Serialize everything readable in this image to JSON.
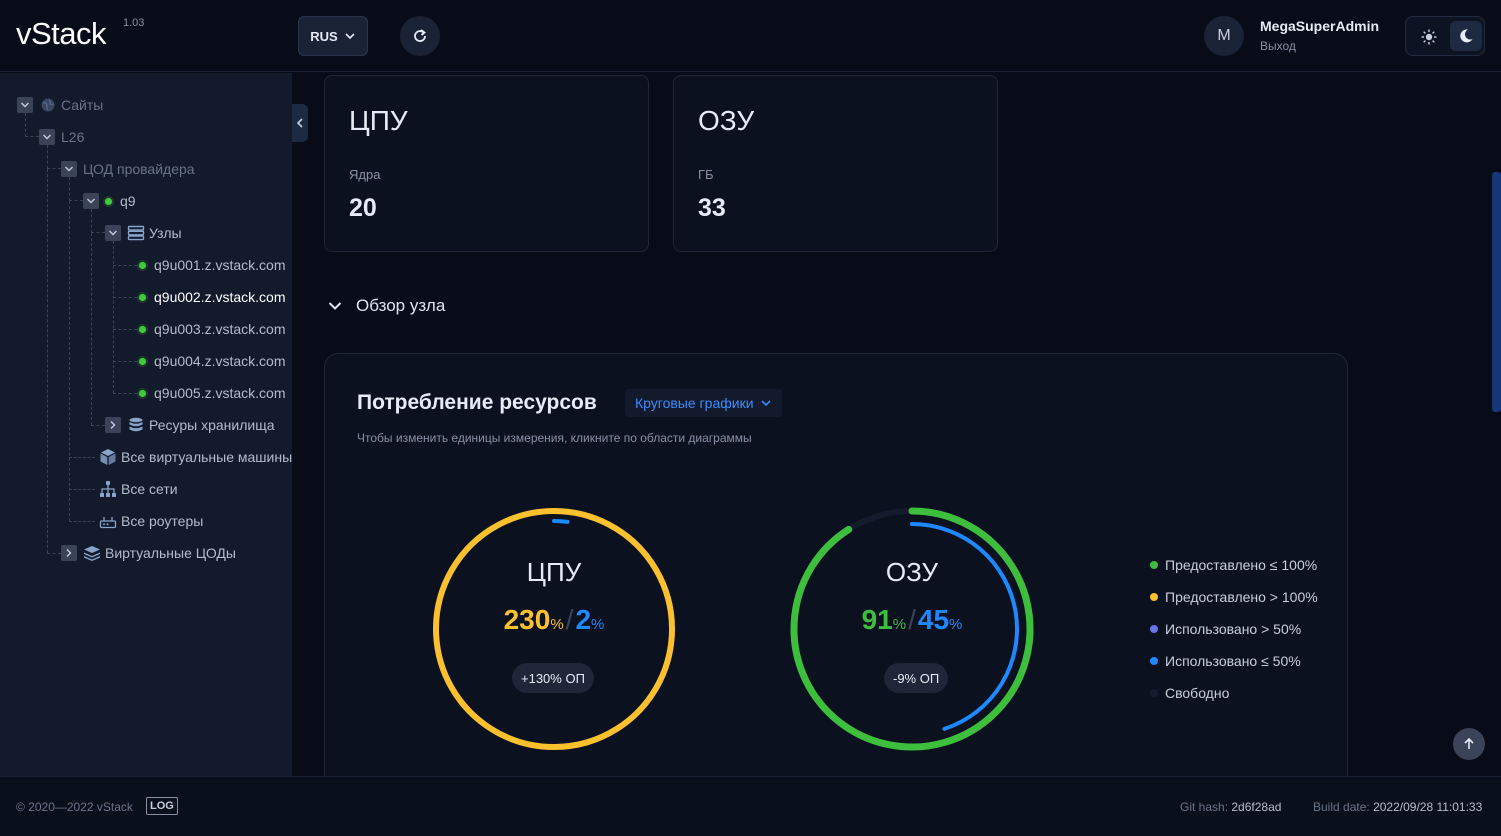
{
  "header": {
    "logo_text": "vStack",
    "version": "1.03",
    "language": "RUS",
    "user_initial": "M",
    "user_name": "MegaSuperAdmin",
    "logout_label": "Выход"
  },
  "sidebar": {
    "tree": [
      {
        "label": "Сайты",
        "icon": "globe-icon"
      },
      {
        "label": "L26"
      },
      {
        "label": "ЦОД провайдера"
      },
      {
        "label": "q9",
        "status": "online"
      },
      {
        "label": "Узлы",
        "icon": "server-icon"
      },
      {
        "label": "q9u001.z.vstack.com",
        "status": "online"
      },
      {
        "label": "q9u002.z.vstack.com",
        "status": "online",
        "selected": true
      },
      {
        "label": "q9u003.z.vstack.com",
        "status": "online"
      },
      {
        "label": "q9u004.z.vstack.com",
        "status": "online"
      },
      {
        "label": "q9u005.z.vstack.com",
        "status": "online"
      },
      {
        "label": "Ресуры хранилища",
        "icon": "database-icon"
      },
      {
        "label": "Все виртуальные машины",
        "icon": "cube-icon"
      },
      {
        "label": "Все сети",
        "icon": "network-icon"
      },
      {
        "label": "Все роутеры",
        "icon": "router-icon"
      },
      {
        "label": "Виртуальные ЦОДы",
        "icon": "layers-icon"
      }
    ]
  },
  "cards": [
    {
      "title": "ЦПУ",
      "label": "Ядра",
      "value": "20"
    },
    {
      "title": "ОЗУ",
      "label": "ГБ",
      "value": "33"
    }
  ],
  "node_overview": {
    "label": "Обзор узла"
  },
  "resources": {
    "title": "Потребление ресурсов",
    "view_mode": "Круговые графики",
    "hint": "Чтобы изменить единицы измерения, кликните по области диаграммы",
    "donuts": [
      {
        "name": "ЦПУ",
        "provisioned": "230",
        "used": "2",
        "unit": "%",
        "badge": "+130% ОП",
        "provisioned_fraction": 2.3,
        "used_fraction": 0.02,
        "provisioned_color": "#fbc02d",
        "used_color": "#1e88ff"
      },
      {
        "name": "ОЗУ",
        "provisioned": "91",
        "used": "45",
        "unit": "%",
        "badge": "-9% ОП",
        "provisioned_fraction": 0.91,
        "used_fraction": 0.45,
        "provisioned_color": "#3dbf3d",
        "used_color": "#1e88ff"
      }
    ],
    "legend": [
      {
        "label": "Предоставлено ≤ 100%",
        "color": "#3dbf3d"
      },
      {
        "label": "Предоставлено > 100%",
        "color": "#fbc02d"
      },
      {
        "label": "Использовано > 50%",
        "color": "#6b73e8"
      },
      {
        "label": "Использовано ≤ 50%",
        "color": "#1e88ff"
      },
      {
        "label": "Свободно",
        "color": "#141b2c"
      }
    ]
  },
  "footer": {
    "copyright": "© 2020—2022 vStack",
    "log_label": "LOG",
    "git_hash_label": "Git hash:",
    "git_hash": "2d6f28ad",
    "build_date_label": "Build date:",
    "build_date": "2022/09/28 11:01:33"
  }
}
